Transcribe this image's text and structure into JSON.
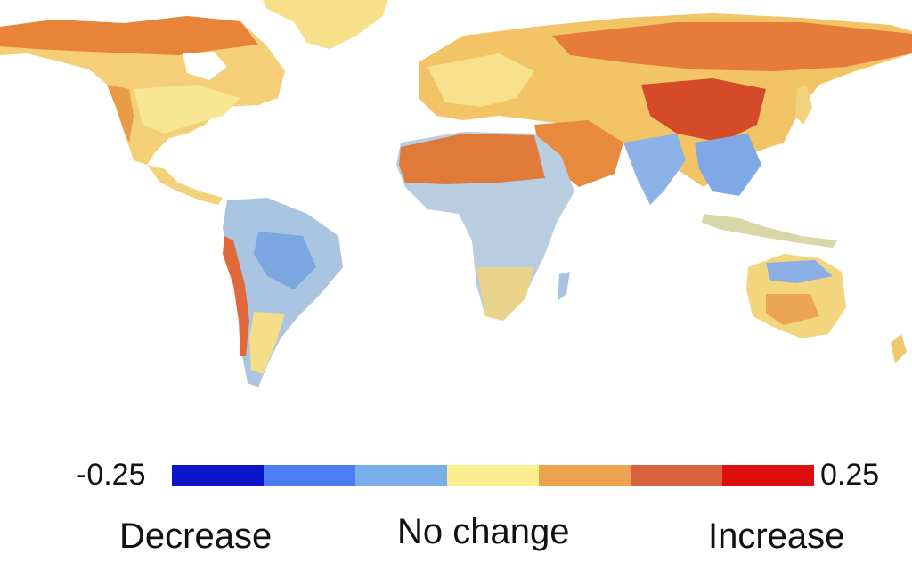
{
  "map": {
    "colors": {
      "strong_increase": "#d93a1f",
      "increase": "#e8783a",
      "mild_increase": "#f1b25c",
      "no_change": "#f6e58c",
      "mild_decrease": "#a8c8e6",
      "decrease": "#6e9fe0",
      "ocean": "#ffffff"
    }
  },
  "legend": {
    "min_label": "-0.25",
    "max_label": "0.25",
    "colors": [
      "#0b15c9",
      "#4d7df2",
      "#7aaee8",
      "#faee8f",
      "#eda24f",
      "#d8613f",
      "#de0e0e"
    ],
    "low_label": "Decrease",
    "mid_label": "No change",
    "high_label": "Increase"
  }
}
